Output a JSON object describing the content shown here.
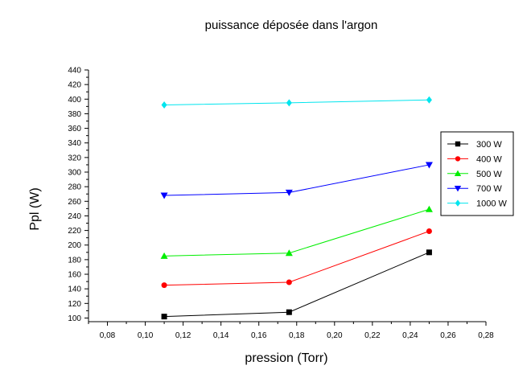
{
  "chart_data": {
    "type": "line",
    "title": "puissance déposée dans l'argon",
    "xlabel": "pression (Torr)",
    "ylabel": "Ppl (W)",
    "xlim": [
      0.07,
      0.28
    ],
    "ylim": [
      95,
      440
    ],
    "xticks": [
      0.08,
      0.1,
      0.12,
      0.14,
      0.16,
      0.18,
      0.2,
      0.22,
      0.24,
      0.26,
      0.28
    ],
    "xtick_labels": [
      "0,08",
      "0,10",
      "0,12",
      "0,14",
      "0,16",
      "0,18",
      "0,20",
      "0,22",
      "0,24",
      "0,26",
      "0,28"
    ],
    "yticks": [
      100,
      120,
      140,
      160,
      180,
      200,
      220,
      240,
      260,
      280,
      300,
      320,
      340,
      360,
      380,
      400,
      420,
      440
    ],
    "ytick_labels": [
      "100",
      "120",
      "140",
      "160",
      "180",
      "200",
      "220",
      "240",
      "260",
      "280",
      "300",
      "320",
      "340",
      "360",
      "380",
      "400",
      "420",
      "440"
    ],
    "grid": false,
    "legend_position": "right",
    "x": [
      0.11,
      0.176,
      0.25
    ],
    "series": [
      {
        "name": "300 W",
        "values": [
          102,
          108,
          190
        ],
        "color": "#000000",
        "marker": "square"
      },
      {
        "name": "400 W",
        "values": [
          145,
          149,
          219
        ],
        "color": "#ff0000",
        "marker": "circle"
      },
      {
        "name": "500 W",
        "values": [
          185,
          189,
          249
        ],
        "color": "#00ee00",
        "marker": "triangle-up"
      },
      {
        "name": "700 W",
        "values": [
          268,
          272,
          310
        ],
        "color": "#0000ff",
        "marker": "triangle-down"
      },
      {
        "name": "1000 W",
        "values": [
          392,
          395,
          399
        ],
        "color": "#00e5ee",
        "marker": "diamond"
      }
    ]
  }
}
